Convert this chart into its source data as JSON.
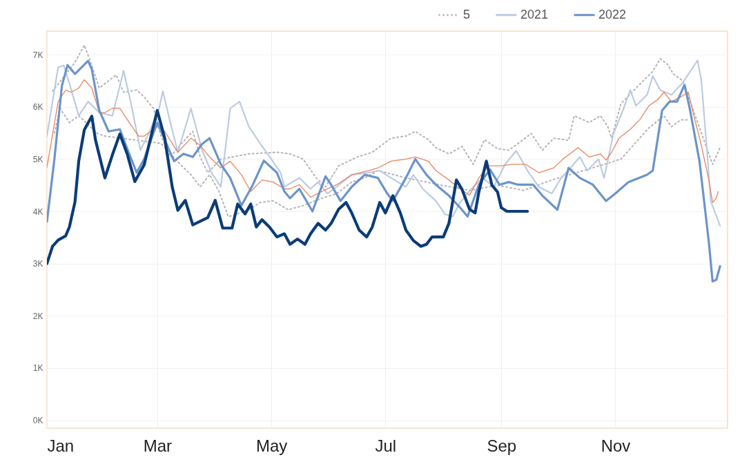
{
  "chart_data": {
    "type": "line",
    "xlim": [
      "--01-01",
      "--12-31"
    ],
    "xticks": [
      {
        "value": "--01-01",
        "label": "Jan"
      },
      {
        "value": "--03-01",
        "label": "Mar"
      },
      {
        "value": "--05-01",
        "label": "May"
      },
      {
        "value": "--07-01",
        "label": "Jul"
      },
      {
        "value": "--09-01",
        "label": "Sep"
      },
      {
        "value": "--11-01",
        "label": "Nov"
      }
    ],
    "ylim": [
      -150,
      7450
    ],
    "yticks": [
      {
        "value": 0,
        "label": "0K"
      },
      {
        "value": 1000,
        "label": "1K"
      },
      {
        "value": 2000,
        "label": "2K"
      },
      {
        "value": 3000,
        "label": "3K"
      },
      {
        "value": 4000,
        "label": "4K"
      },
      {
        "value": 5000,
        "label": "5K"
      },
      {
        "value": 6000,
        "label": "6K"
      },
      {
        "value": 7000,
        "label": "7K"
      }
    ],
    "grid": true,
    "legend": "top right",
    "series": [
      {
        "name": "5",
        "color": "#b4b4b4",
        "line_style": "dotted",
        "x": [
          "--01-04",
          "--01-16",
          "--01-21",
          "--01-24",
          "--01-29",
          "--02-03",
          "--02-07",
          "--02-11",
          "--02-18",
          "--02-22",
          "--02-27",
          "--03-03",
          "--03-08",
          "--03-14",
          "--03-20",
          "--03-24",
          "--03-28",
          "--04-04",
          "--04-19",
          "--05-04",
          "--05-11",
          "--05-18",
          "--05-25",
          "--05-30",
          "--06-06",
          "--06-16",
          "--06-24",
          "--07-04",
          "--07-12",
          "--07-17",
          "--07-24",
          "--07-28",
          "--08-04",
          "--08-11",
          "--08-17",
          "--08-23",
          "--08-30",
          "--09-05",
          "--09-10",
          "--09-17",
          "--09-23",
          "--09-29",
          "--10-07",
          "--10-10",
          "--10-18",
          "--10-24",
          "--10-28",
          "--10-30",
          "--11-04",
          "--11-11",
          "--11-16",
          "--11-21",
          "--11-25",
          "--11-29",
          "--12-02",
          "--12-07",
          "--12-23",
          "--12-27"
        ],
        "values": [
          6300,
          6850,
          7180,
          6890,
          6360,
          6500,
          6610,
          6280,
          6320,
          6190,
          5970,
          5440,
          5040,
          5300,
          5530,
          5040,
          4740,
          5000,
          5100,
          5130,
          5100,
          5000,
          4640,
          4470,
          4870,
          5040,
          5130,
          5400,
          5440,
          5530,
          5370,
          5220,
          5100,
          5240,
          4900,
          5370,
          5200,
          5170,
          5300,
          5490,
          5170,
          5400,
          5360,
          5830,
          5700,
          5830,
          5620,
          5400,
          6060,
          6320,
          6500,
          6680,
          6920,
          6810,
          6630,
          6500,
          4900,
          5220
        ]
      },
      {
        "color": "#b4b4b4",
        "line_style": "dotted",
        "x": [
          "--01-05",
          "--01-08",
          "--01-13",
          "--01-18",
          "--01-28",
          "--02-01",
          "--03-03",
          "--03-13",
          "--03-19",
          "--03-24",
          "--03-29",
          "--04-03",
          "--04-08",
          "--04-12",
          "--04-19",
          "--04-25",
          "--05-02",
          "--05-10",
          "--05-18",
          "--05-28",
          "--06-05",
          "--06-13",
          "--06-20",
          "--06-27",
          "--07-12",
          "--07-31",
          "--08-15",
          "--08-30",
          "--09-13",
          "--09-28",
          "--10-17",
          "--11-04",
          "--11-19",
          "--11-27",
          "--12-01",
          "--12-06",
          "--12-10"
        ],
        "values": [
          5500,
          5970,
          5700,
          5830,
          5490,
          5440,
          5300,
          4910,
          4700,
          4470,
          4700,
          4380,
          3900,
          3940,
          4030,
          4170,
          4200,
          4030,
          4110,
          4250,
          4340,
          4560,
          4640,
          4780,
          4640,
          4500,
          4400,
          4500,
          4400,
          4600,
          4800,
          5000,
          5600,
          5830,
          5620,
          5750,
          5750
        ]
      },
      {
        "name": "2021",
        "color": "#bccbe2",
        "line_style": "solid",
        "x": [
          "--01-01",
          "--01-07",
          "--01-10",
          "--01-13",
          "--01-18",
          "--01-23",
          "--01-29",
          "--02-05",
          "--02-11",
          "--02-15",
          "--02-20",
          "--02-25",
          "--03-02",
          "--03-04",
          "--03-08",
          "--03-12",
          "--03-19",
          "--03-25",
          "--03-30",
          "--04-04",
          "--04-09",
          "--04-14",
          "--04-19",
          "--04-25",
          "--05-01",
          "--05-06",
          "--05-08",
          "--05-16",
          "--05-22",
          "--05-26",
          "--05-31",
          "--06-05",
          "--06-13",
          "--06-22",
          "--06-28",
          "--07-04",
          "--07-12",
          "--07-16",
          "--07-21",
          "--07-28",
          "--08-02",
          "--08-06",
          "--08-10",
          "--08-16",
          "--08-22",
          "--08-28",
          "--09-03",
          "--09-09",
          "--09-15",
          "--09-21",
          "--09-28",
          "--10-03",
          "--10-08",
          "--10-13",
          "--10-17",
          "--10-23",
          "--10-26",
          "--10-31",
          "--11-05",
          "--11-09",
          "--11-12",
          "--11-18",
          "--11-21",
          "--11-25",
          "--12-01",
          "--12-07",
          "--12-15",
          "--12-17",
          "--12-20",
          "--12-22",
          "--12-27"
        ],
        "values": [
          5440,
          6760,
          6790,
          6450,
          5830,
          6100,
          5890,
          5830,
          6690,
          6060,
          5170,
          5530,
          5970,
          6300,
          5700,
          5130,
          5970,
          5170,
          4740,
          4470,
          5970,
          6100,
          5620,
          5300,
          5000,
          4740,
          4470,
          4640,
          4430,
          4560,
          4340,
          4470,
          4700,
          4740,
          4780,
          4640,
          4470,
          4700,
          4430,
          4200,
          3940,
          3900,
          4170,
          4430,
          4640,
          4470,
          4900,
          5160,
          4780,
          4470,
          4340,
          4640,
          4830,
          5040,
          4780,
          5000,
          4640,
          5490,
          5930,
          6320,
          6020,
          6230,
          6590,
          6320,
          6230,
          6460,
          6890,
          6500,
          5170,
          4200,
          3720
        ]
      },
      {
        "color": "#e8845e",
        "line_style": "solid",
        "x": [
          "--01-01",
          "--01-07",
          "--01-11",
          "--01-14",
          "--01-18",
          "--01-21",
          "--01-25",
          "--01-29",
          "--02-01",
          "--02-05",
          "--02-09",
          "--02-14",
          "--02-19",
          "--02-22",
          "--03-01",
          "--03-05",
          "--03-12",
          "--03-19",
          "--03-24",
          "--03-29",
          "--04-04",
          "--04-09",
          "--04-15",
          "--04-20",
          "--04-26",
          "--05-02",
          "--05-08",
          "--05-11",
          "--05-16",
          "--05-22",
          "--05-28",
          "--06-05",
          "--06-13",
          "--06-22",
          "--06-27",
          "--07-04",
          "--07-12",
          "--07-17",
          "--07-24",
          "--07-28",
          "--08-04",
          "--08-10",
          "--08-15",
          "--08-20",
          "--08-25",
          "--09-01",
          "--09-07",
          "--09-14",
          "--09-21",
          "--09-29",
          "--10-04",
          "--10-12",
          "--10-18",
          "--10-24",
          "--10-27",
          "--10-30",
          "--11-03",
          "--11-09",
          "--11-14",
          "--11-19",
          "--11-24",
          "--11-27",
          "--12-01",
          "--12-06",
          "--12-10",
          "--12-13",
          "--12-17",
          "--12-21",
          "--12-23",
          "--12-25",
          "--12-26"
        ],
        "values": [
          4840,
          6100,
          6320,
          6280,
          6360,
          6520,
          6360,
          5890,
          5890,
          5970,
          5970,
          5700,
          5440,
          5440,
          5620,
          5530,
          5130,
          5400,
          5260,
          5040,
          4830,
          4960,
          4700,
          4380,
          4600,
          4560,
          4430,
          4430,
          4510,
          4270,
          4380,
          4510,
          4700,
          4780,
          4830,
          4960,
          5000,
          5040,
          4960,
          4780,
          4600,
          4430,
          4310,
          4640,
          4870,
          4870,
          4900,
          4900,
          4740,
          4830,
          5000,
          5220,
          5040,
          5100,
          4980,
          5130,
          5400,
          5570,
          5750,
          6020,
          6150,
          6280,
          6100,
          6190,
          6280,
          5830,
          5260,
          4600,
          4170,
          4250,
          4380
        ]
      },
      {
        "name": "2022",
        "color": "#6b94c9",
        "line_style": "solid",
        "x": [
          "--01-01",
          "--01-05",
          "--01-09",
          "--01-12",
          "--01-16",
          "--01-23",
          "--01-25",
          "--01-29",
          "--02-03",
          "--02-09",
          "--02-14",
          "--02-18",
          "--02-22",
          "--03-01",
          "--03-10",
          "--03-15",
          "--03-20",
          "--03-25",
          "--03-29",
          "--04-04",
          "--04-09",
          "--04-15",
          "--04-21",
          "--04-27",
          "--05-04",
          "--05-08",
          "--05-11",
          "--05-16",
          "--05-23",
          "--05-30",
          "--06-02",
          "--06-07",
          "--06-13",
          "--06-20",
          "--06-27",
          "--07-02",
          "--07-05",
          "--07-12",
          "--07-17",
          "--07-23",
          "--07-28",
          "--08-04",
          "--08-10",
          "--08-14",
          "--08-20",
          "--08-26",
          "--08-31",
          "--09-05",
          "--09-10",
          "--09-18",
          "--09-23",
          "--10-01",
          "--10-07",
          "--10-13",
          "--10-20",
          "--10-27",
          "--11-01",
          "--11-08",
          "--11-18",
          "--11-21",
          "--11-26",
          "--11-30",
          "--12-04",
          "--12-08",
          "--12-11",
          "--12-16",
          "--12-21",
          "--12-23",
          "--12-25",
          "--12-27"
        ],
        "values": [
          3800,
          5000,
          6400,
          6800,
          6630,
          6880,
          6720,
          5930,
          5530,
          5570,
          5100,
          4740,
          5000,
          5700,
          4960,
          5100,
          5040,
          5290,
          5400,
          4900,
          4640,
          4110,
          4500,
          4970,
          4740,
          4380,
          4250,
          4430,
          4000,
          4670,
          4510,
          4200,
          4470,
          4700,
          4640,
          4340,
          4200,
          4640,
          5000,
          4700,
          4510,
          4300,
          4070,
          3900,
          4510,
          4800,
          4510,
          4560,
          4510,
          4510,
          4300,
          4030,
          4830,
          4640,
          4510,
          4200,
          4340,
          4560,
          4700,
          4780,
          5930,
          6100,
          6100,
          6420,
          5930,
          4960,
          3410,
          2660,
          2690,
          2950
        ]
      },
      {
        "color": "#0b3c78",
        "line_style": "solid",
        "x": [
          "--01-01",
          "--01-04",
          "--01-07",
          "--01-11",
          "--01-13",
          "--01-16",
          "--01-18",
          "--01-21",
          "--01-25",
          "--01-27",
          "--02-01",
          "--02-05",
          "--02-09",
          "--02-13",
          "--02-17",
          "--02-22",
          "--03-01",
          "--03-05",
          "--03-09",
          "--03-12",
          "--03-16",
          "--03-20",
          "--03-24",
          "--03-28",
          "--04-01",
          "--04-05",
          "--04-10",
          "--04-13",
          "--04-17",
          "--04-20",
          "--04-23",
          "--04-26",
          "--04-30",
          "--05-04",
          "--05-08",
          "--05-11",
          "--05-15",
          "--05-19",
          "--05-22",
          "--05-26",
          "--05-30",
          "--06-02",
          "--06-06",
          "--06-10",
          "--06-13",
          "--06-17",
          "--06-21",
          "--06-24",
          "--06-28",
          "--07-01",
          "--07-05",
          "--07-09",
          "--07-12",
          "--07-16",
          "--07-20",
          "--07-23",
          "--07-26",
          "--08-01",
          "--08-04",
          "--08-08",
          "--08-11",
          "--08-15",
          "--08-18",
          "--08-20",
          "--08-24",
          "--08-27",
          "--08-30",
          "--09-01",
          "--09-04",
          "--09-15"
        ],
        "values": [
          3000,
          3330,
          3450,
          3530,
          3700,
          4180,
          4960,
          5560,
          5820,
          5360,
          4640,
          5080,
          5480,
          5090,
          4570,
          4890,
          5930,
          5400,
          4470,
          4020,
          4210,
          3740,
          3810,
          3880,
          4210,
          3680,
          3680,
          4140,
          3950,
          4140,
          3700,
          3840,
          3700,
          3510,
          3570,
          3370,
          3470,
          3370,
          3570,
          3770,
          3640,
          3770,
          4040,
          4170,
          3970,
          3640,
          3510,
          3700,
          4170,
          3970,
          4300,
          3970,
          3640,
          3440,
          3330,
          3370,
          3510,
          3510,
          3770,
          4600,
          4420,
          4040,
          3970,
          4370,
          4960,
          4500,
          4370,
          4070,
          4000,
          4000
        ]
      }
    ]
  }
}
